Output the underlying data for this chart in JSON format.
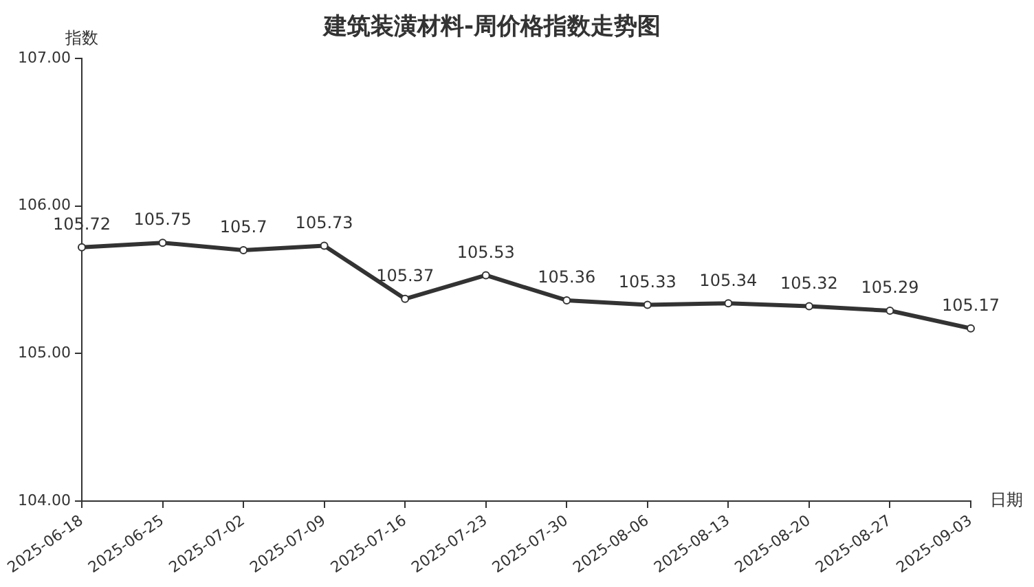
{
  "chart_data": {
    "type": "line",
    "title": "建筑装潢材料-周价格指数走势图",
    "xlabel": "日期",
    "ylabel": "指数",
    "categories": [
      "2025-06-18",
      "2025-06-25",
      "2025-07-02",
      "2025-07-09",
      "2025-07-16",
      "2025-07-23",
      "2025-07-30",
      "2025-08-06",
      "2025-08-13",
      "2025-08-20",
      "2025-08-27",
      "2025-09-03"
    ],
    "series": [
      {
        "color": "#333333",
        "values": [
          105.72,
          105.75,
          105.7,
          105.73,
          105.37,
          105.53,
          105.36,
          105.33,
          105.34,
          105.32,
          105.29,
          105.17
        ]
      }
    ],
    "ylim": [
      104,
      107
    ],
    "yticks": [
      {
        "value": 104,
        "label": "104.00"
      },
      {
        "value": 105,
        "label": "105.00"
      },
      {
        "value": 106,
        "label": "106.00"
      },
      {
        "value": 107,
        "label": "107.00"
      }
    ],
    "grid": false,
    "legend": false,
    "marker": "circle",
    "line_style": "solid",
    "data_labels": true
  }
}
